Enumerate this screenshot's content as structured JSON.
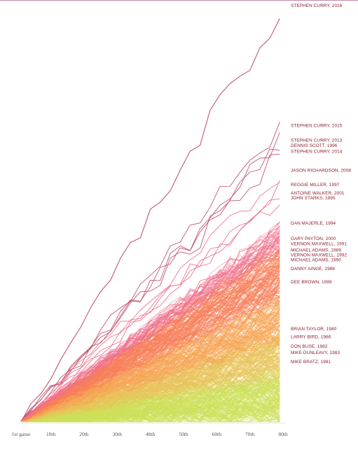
{
  "chart_data": {
    "type": "line",
    "title": "",
    "xlabel": "",
    "ylabel": "",
    "x_tick_labels": [
      "1st game",
      "10th",
      "20th",
      "30th",
      "40th",
      "50th",
      "60th",
      "70th",
      "80th"
    ],
    "x_ticks": [
      1,
      10,
      20,
      30,
      40,
      50,
      60,
      70,
      80
    ],
    "xlim": [
      1,
      80
    ],
    "grid": false,
    "colors": {
      "top_line": "#c0506a",
      "high": "#f0708a",
      "upper_mid": "#f7805a",
      "mid": "#f5a556",
      "low_mid": "#e8c45a",
      "low": "#cde05a",
      "label": "#8a1d2c"
    },
    "series": [
      {
        "name": "STEPHEN CURRY, 2016",
        "final": 402
      },
      {
        "name": "STEPHEN CURRY, 2015",
        "final": 286
      },
      {
        "name": "STEPHEN CURRY, 2013",
        "final": 272
      },
      {
        "name": "DENNIS SCOTT, 1996",
        "final": 267
      },
      {
        "name": "STEPHEN CURRY, 2014",
        "final": 261
      },
      {
        "name": "JASON RICHARDSON, 2008",
        "final": 243
      },
      {
        "name": "REGGIE MILLER, 1997",
        "final": 229
      },
      {
        "name": "ANTOINE WALKER, 2001",
        "final": 221
      },
      {
        "name": "JOHN STARKS, 1995",
        "final": 217
      },
      {
        "name": "DAN MAJERLE, 1994",
        "final": 192
      },
      {
        "name": "GARY PAYTON, 2000",
        "final": 177
      },
      {
        "name": "VERNON MAXWELL, 1991",
        "final": 172
      },
      {
        "name": "MICHAEL ADAMS, 1989",
        "final": 166
      },
      {
        "name": "VERNON MAXWELL, 1992",
        "final": 162
      },
      {
        "name": "MICHAEL ADAMS, 1990",
        "final": 158
      },
      {
        "name": "DANNY AINGE, 1988",
        "final": 148
      },
      {
        "name": "DEE BROWN, 1999",
        "final": 135
      },
      {
        "name": "BRIAN TAYLOR, 1980",
        "final": 90
      },
      {
        "name": "LARRY BIRD, 1986",
        "final": 82
      },
      {
        "name": "DON BUSE, 1982",
        "final": 73
      },
      {
        "name": "MIKE DUNLEAVY, 1983",
        "final": 67
      },
      {
        "name": "MIKE BRATZ, 1981",
        "final": 58
      }
    ]
  }
}
